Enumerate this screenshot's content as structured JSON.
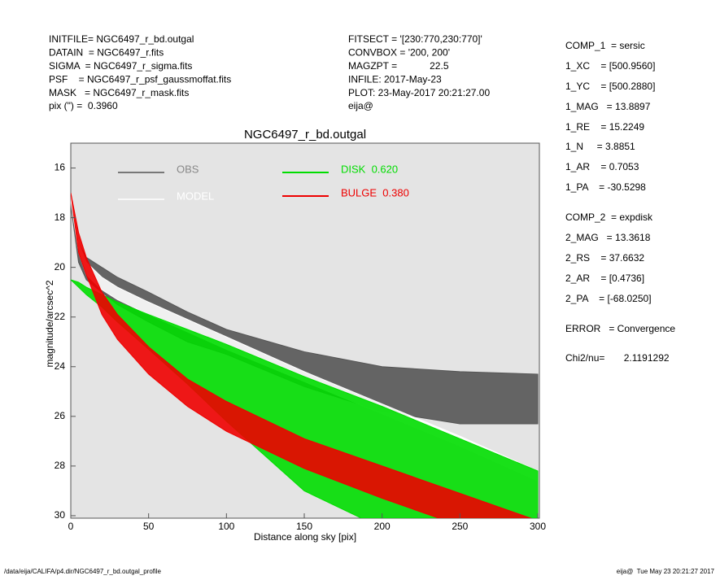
{
  "header": {
    "left": [
      "INITFILE= NGC6497_r_bd.outgal",
      "DATAIN  = NGC6497_r.fits",
      "SIGMA  = NGC6497_r_sigma.fits",
      "PSF    = NGC6497_r_psf_gaussmoffat.fits",
      "MASK   = NGC6497_r_mask.fits",
      "pix (\") =  0.3960"
    ],
    "middle": [
      "FITSECT = '[230:770,230:770]'",
      "CONVBOX = '200, 200'",
      "MAGZPT =            22.5",
      "INFILE: 2017-May-23",
      "PLOT: 23-May-2017 20:21:27.00",
      "eija@"
    ],
    "right": [
      "COMP_1  = sersic",
      "1_XC    = [500.9560]",
      "1_YC    = [500.2880]",
      "1_MAG   = 13.8897",
      "1_RE    = 15.2249",
      "1_N     = 3.8851",
      "1_AR    = 0.7053",
      "1_PA    = -30.5298",
      "COMP_2  = expdisk",
      "2_MAG   = 13.3618",
      "2_RS    = 37.6632",
      "2_AR    = [0.4736]",
      "2_PA    = [-68.0250]",
      "ERROR   = Convergence",
      "Chi2/nu=       2.1191292"
    ]
  },
  "footer": {
    "path": "/data/eija/CALIFA/p4.dir/NGC6497_r_bd.outgal_profile",
    "stamp": "eija@  Tue May 23 20:21:27 2017"
  },
  "chart_data": {
    "type": "band",
    "title": "NGC6497_r_bd.outgal",
    "xlabel": "Distance along sky [pix]",
    "ylabel": "magnitude/arcsec^2",
    "xlim": [
      0,
      300
    ],
    "ylim": [
      30.1,
      15
    ],
    "xticks": [
      0,
      50,
      100,
      150,
      200,
      250,
      300
    ],
    "yticks": [
      16,
      18,
      20,
      22,
      24,
      26,
      28,
      30
    ],
    "x": [
      0,
      5,
      10,
      20,
      30,
      50,
      75,
      100,
      150,
      200,
      250,
      300
    ],
    "series": [
      {
        "name": "OBS",
        "color": "#555555",
        "values": [
          17,
          19,
          19.6,
          20,
          20.4,
          21,
          21.8,
          22.5,
          23.4,
          24,
          24.2,
          24.3
        ],
        "lower": [
          17.5,
          19.8,
          20.5,
          21,
          21.5,
          22.2,
          23,
          23.5,
          24.8,
          25.8,
          26.3,
          26.3
        ]
      },
      {
        "name": "MODEL",
        "color": "#ffffff",
        "values": [
          17,
          19,
          19.8,
          20.4,
          20.8,
          21.4,
          22.1,
          22.8,
          24.2,
          25.5,
          26.8,
          28.2
        ],
        "lower": [
          17.3,
          19.4,
          20.3,
          20.9,
          21.3,
          21.9,
          22.6,
          23.3,
          24.6,
          25.9,
          27.2,
          28.6
        ]
      },
      {
        "name": "DISK  0.620",
        "color": "#00dd00",
        "values": [
          20.5,
          20.6,
          20.8,
          21.1,
          21.4,
          21.9,
          22.5,
          23.1,
          24.4,
          25.6,
          26.9,
          28.2
        ],
        "lower": [
          20.5,
          20.8,
          21.1,
          21.6,
          22.2,
          23.3,
          24.7,
          26.2,
          29,
          30.5,
          31,
          31
        ]
      },
      {
        "name": "BULGE  0.380",
        "color": "#ee0000",
        "values": [
          17,
          18.6,
          19.6,
          21,
          21.9,
          23.2,
          24.5,
          25.4,
          26.9,
          28,
          29.1,
          30.2
        ],
        "lower": [
          17,
          19.4,
          20.3,
          21.9,
          22.9,
          24.3,
          25.6,
          26.6,
          28.1,
          29.3,
          30.4,
          31.5
        ]
      }
    ]
  }
}
